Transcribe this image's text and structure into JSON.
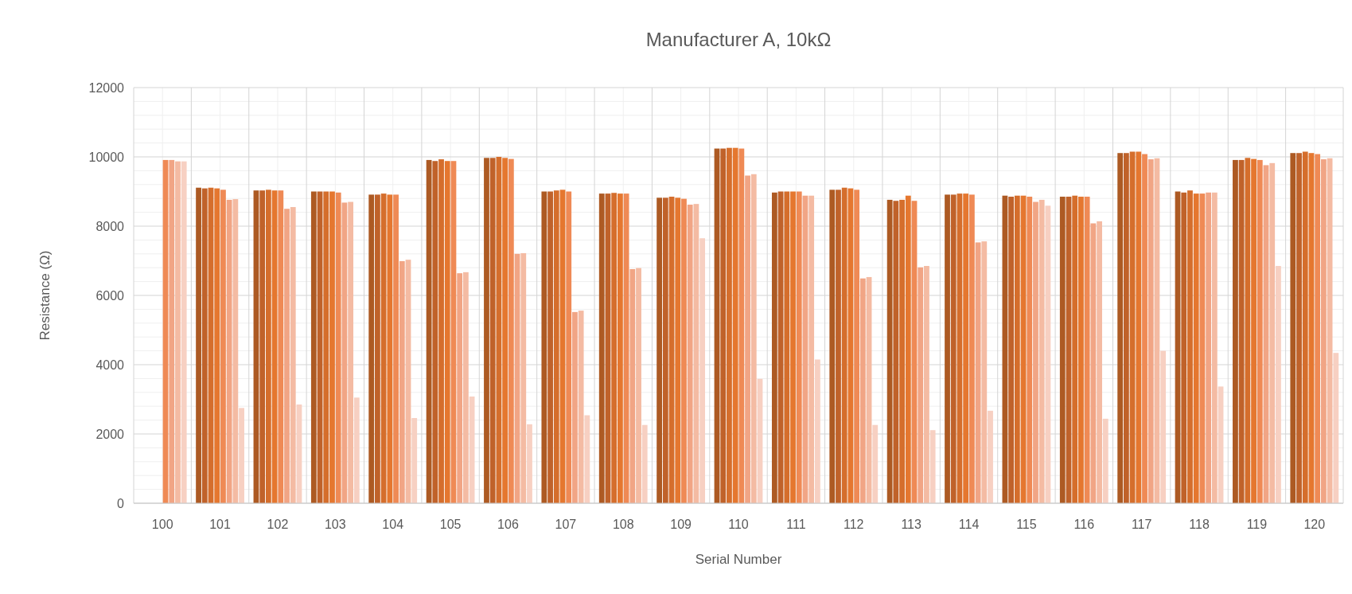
{
  "chart_data": {
    "type": "bar",
    "title": "Manufacturer A, 10kΩ",
    "xlabel": "Serial Number",
    "ylabel": "Resistance (Ω)",
    "categories": [
      "100",
      "101",
      "102",
      "103",
      "104",
      "105",
      "106",
      "107",
      "108",
      "109",
      "110",
      "111",
      "112",
      "113",
      "114",
      "115",
      "116",
      "117",
      "118",
      "119",
      "120"
    ],
    "ylim": [
      0,
      12000
    ],
    "yticks": [
      0,
      2000,
      4000,
      6000,
      8000,
      10000,
      12000
    ],
    "grid": true,
    "series": [
      {
        "color": "#ad5a23",
        "values": [
          null,
          9110,
          9030,
          9000,
          8910,
          9910,
          9970,
          9000,
          8940,
          8820,
          10240,
          8970,
          9050,
          8760,
          8910,
          8880,
          8850,
          10110,
          9000,
          9910,
          10110
        ]
      },
      {
        "color": "#c0622a",
        "values": [
          null,
          9090,
          9030,
          9000,
          8910,
          9880,
          9970,
          9000,
          8940,
          8820,
          10240,
          9000,
          9050,
          8730,
          8910,
          8850,
          8850,
          10110,
          8970,
          9910,
          10110
        ]
      },
      {
        "color": "#d56e2c",
        "values": [
          null,
          9110,
          9050,
          9000,
          8940,
          9930,
          10000,
          9030,
          8960,
          8850,
          10260,
          9000,
          9110,
          8760,
          8940,
          8880,
          8880,
          10150,
          9030,
          9970,
          10150
        ]
      },
      {
        "color": "#e5772f",
        "values": [
          null,
          9090,
          9030,
          9000,
          8910,
          9880,
          9970,
          9050,
          8940,
          8820,
          10260,
          9000,
          9090,
          8880,
          8940,
          8880,
          8850,
          10150,
          8940,
          9940,
          10110
        ]
      },
      {
        "color": "#ef8a55",
        "values": [
          9910,
          9050,
          9030,
          8970,
          8910,
          9880,
          9940,
          9000,
          8940,
          8790,
          10240,
          9000,
          9050,
          8730,
          8910,
          8850,
          8850,
          10080,
          8940,
          9910,
          10080
        ]
      },
      {
        "color": "#f1a585",
        "values": [
          9910,
          8760,
          8500,
          8680,
          6990,
          6640,
          7200,
          5520,
          6760,
          8620,
          9460,
          8880,
          6490,
          6810,
          7530,
          8700,
          8080,
          9930,
          8970,
          9760,
          9930
        ]
      },
      {
        "color": "#f4bba3",
        "values": [
          9870,
          8780,
          8550,
          8700,
          7030,
          6670,
          7220,
          5560,
          6790,
          8640,
          9500,
          8880,
          6530,
          6850,
          7560,
          8760,
          8140,
          9960,
          8970,
          9820,
          9960
        ]
      },
      {
        "color": "#f7d0c2",
        "values": [
          9870,
          2750,
          2850,
          3050,
          2460,
          3080,
          2280,
          2540,
          2260,
          7650,
          3590,
          4150,
          2260,
          2110,
          2670,
          8590,
          2440,
          4400,
          3370,
          6850,
          4340
        ]
      }
    ]
  }
}
